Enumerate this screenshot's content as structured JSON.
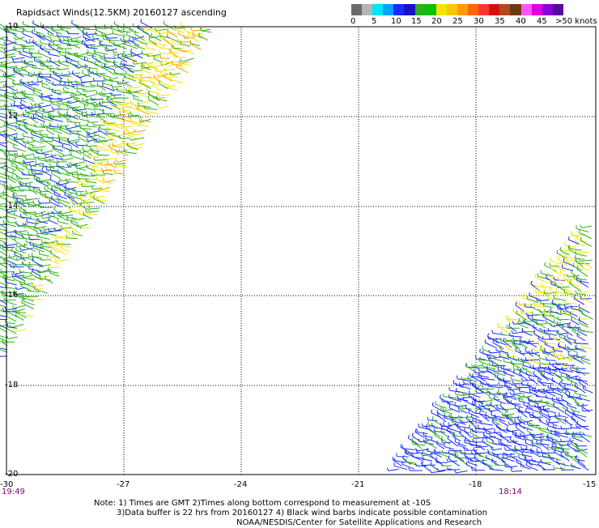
{
  "title": "Rapidsact Winds(12.5KM) 20160127 ascending",
  "legend": {
    "colors": [
      "#6a6a6a",
      "#b5b5b5",
      "#00e5ff",
      "#00a2ff",
      "#1a2bff",
      "#1a0fc8",
      "#2ab01a",
      "#08c008",
      "#f6e400",
      "#f6c800",
      "#ff9a00",
      "#ff6600",
      "#ff3535",
      "#d80f0f",
      "#b04a1a",
      "#6e3a12",
      "#ff55ff",
      "#e000e0",
      "#8a00d8",
      "#5a0aa0"
    ],
    "labels": [
      "0",
      "5",
      "10",
      "15",
      "20",
      "25",
      "30",
      "35",
      "40",
      "45",
      ">50 knots"
    ]
  },
  "axes": {
    "lat_ticks": [
      "-10",
      "-12",
      "-14",
      "-16",
      "-18",
      "-20"
    ],
    "lon_ticks": [
      "-30",
      "-27",
      "-24",
      "-21",
      "-18",
      "-15"
    ]
  },
  "times": {
    "left": "19:49",
    "right": "18:14"
  },
  "note": {
    "line1": "Note: 1) Times are GMT 2)Times along bottom correspond to measurement at -10S",
    "line2": "3)Data buffer is 22 hrs from 20160127 4) Black wind barbs indicate possible contamination",
    "line3": "NOAA/NESDIS/Center for Satellite Applications and Research"
  },
  "colors": {
    "wind_blue": "#1a2bff",
    "wind_green": "#2ab01a",
    "wind_yellow": "#f6e400",
    "wind_orange": "#ff9a00"
  }
}
